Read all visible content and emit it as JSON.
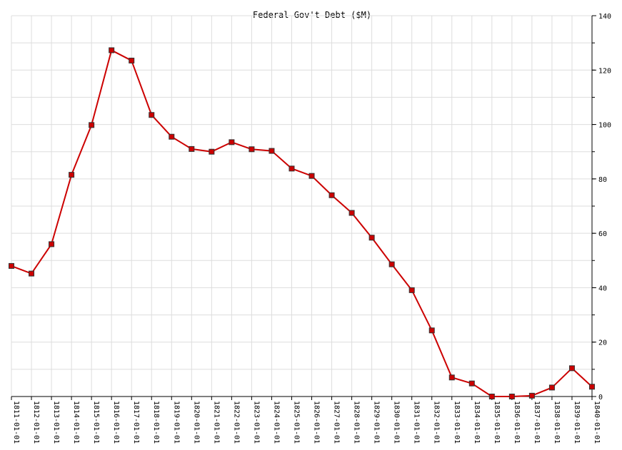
{
  "chart_data": {
    "type": "line",
    "title": "Federal Gov't Debt ($M)",
    "xlabel": "",
    "ylabel": "",
    "y_axis_side": "right",
    "ylim": [
      0,
      140
    ],
    "yticks": [
      0,
      20,
      40,
      60,
      80,
      100,
      120,
      140
    ],
    "grid": true,
    "legend": "none",
    "line_color": "#cc0000",
    "marker_color": "#cc0000",
    "categories": [
      "1811-01-01",
      "1812-01-01",
      "1813-01-01",
      "1814-01-01",
      "1815-01-01",
      "1816-01-01",
      "1817-01-01",
      "1818-01-01",
      "1819-01-01",
      "1820-01-01",
      "1821-01-01",
      "1822-01-01",
      "1823-01-01",
      "1824-01-01",
      "1825-01-01",
      "1826-01-01",
      "1827-01-01",
      "1828-01-01",
      "1829-01-01",
      "1830-01-01",
      "1831-01-01",
      "1832-01-01",
      "1833-01-01",
      "1834-01-01",
      "1835-01-01",
      "1836-01-01",
      "1837-01-01",
      "1838-01-01",
      "1839-01-01",
      "1840-01-01"
    ],
    "series": [
      {
        "values": [
          48.0,
          45.2,
          56.0,
          81.5,
          99.8,
          127.3,
          123.5,
          103.5,
          95.5,
          91.0,
          90.0,
          93.5,
          90.9,
          90.3,
          83.8,
          81.1,
          74.0,
          67.5,
          58.4,
          48.6,
          39.1,
          24.3,
          7.0,
          4.8,
          0.0,
          0.0,
          0.3,
          3.3,
          10.4,
          3.6
        ]
      }
    ]
  }
}
